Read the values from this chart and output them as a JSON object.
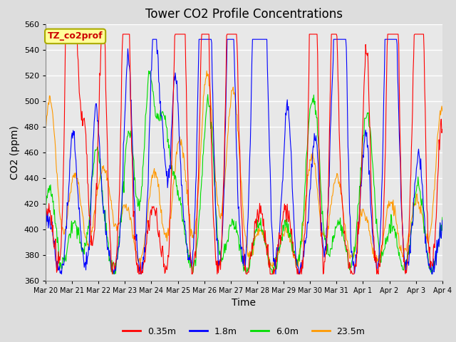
{
  "title": "Tower CO2 Profile Concentrations",
  "xlabel": "Time",
  "ylabel": "CO2 (ppm)",
  "ylim": [
    360,
    560
  ],
  "yticks": [
    360,
    380,
    400,
    420,
    440,
    460,
    480,
    500,
    520,
    540,
    560
  ],
  "series_labels": [
    "0.35m",
    "1.8m",
    "6.0m",
    "23.5m"
  ],
  "series_colors": [
    "#ff0000",
    "#0000ff",
    "#00dd00",
    "#ff9900"
  ],
  "annotation_text": "TZ_co2prof",
  "annotation_box_color": "#ffff99",
  "annotation_box_edge": "#aaaa00",
  "annotation_text_color": "#cc0000",
  "bg_color": "#dddddd",
  "plot_bg_color": "#e8e8e8",
  "n_days": 15,
  "xtick_labels": [
    "Mar 20",
    "Mar 21",
    "Mar 22",
    "Mar 23",
    "Mar 24",
    "Mar 25",
    "Mar 26",
    "Mar 27",
    "Mar 28",
    "Mar 29",
    "Mar 30",
    "Mar 31",
    "Apr 1",
    "Apr 2",
    "Apr 3",
    "Apr 4"
  ],
  "seed": 42
}
